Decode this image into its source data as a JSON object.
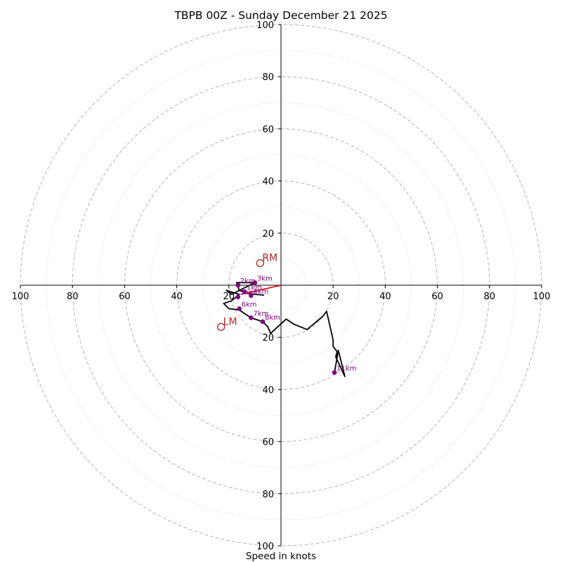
{
  "chart_data": {
    "type": "hodograph",
    "title": "TBPB 00Z - Sunday December 21 2025",
    "xlabel": "Speed in knots",
    "xlim": [
      -100,
      100
    ],
    "ylim": [
      -100,
      100
    ],
    "rings_major": [
      20,
      40,
      60,
      80,
      100
    ],
    "rings_minor": [
      10,
      30,
      50,
      70,
      90
    ],
    "x_ticks": [
      {
        "value": -100,
        "label": "100"
      },
      {
        "value": -80,
        "label": "80"
      },
      {
        "value": -60,
        "label": "60"
      },
      {
        "value": -40,
        "label": "40"
      },
      {
        "value": -20,
        "label": "20"
      },
      {
        "value": 20,
        "label": "20"
      },
      {
        "value": 40,
        "label": "40"
      },
      {
        "value": 60,
        "label": "60"
      },
      {
        "value": 80,
        "label": "80"
      },
      {
        "value": 100,
        "label": "100"
      }
    ],
    "y_ticks": [
      {
        "value": 100,
        "label": "100"
      },
      {
        "value": 80,
        "label": "80"
      },
      {
        "value": 60,
        "label": "60"
      },
      {
        "value": 40,
        "label": "40"
      },
      {
        "value": 20,
        "label": "20"
      },
      {
        "value": -20,
        "label": "20"
      },
      {
        "value": -40,
        "label": "40"
      },
      {
        "value": -60,
        "label": "60"
      },
      {
        "value": -80,
        "label": "80"
      },
      {
        "value": -100,
        "label": "100"
      }
    ],
    "trace": [
      [
        -6.5,
        -3.8
      ],
      [
        -10.0,
        -3.5
      ],
      [
        -13.0,
        -3.0
      ],
      [
        -16.0,
        -2.0
      ],
      [
        -17.0,
        1.0
      ],
      [
        -10.0,
        1.0
      ],
      [
        -15.0,
        -1.5
      ],
      [
        -19.0,
        -3.5
      ],
      [
        -21.0,
        -2.0
      ],
      [
        -16.0,
        -3.5
      ],
      [
        -19.0,
        -6.0
      ],
      [
        -22.0,
        -7.0
      ],
      [
        -20.0,
        -9.0
      ],
      [
        -16.0,
        -9.5
      ],
      [
        -11.5,
        -12.5
      ],
      [
        -7.0,
        -14.0
      ],
      [
        -5.0,
        -16.0
      ],
      [
        -4.0,
        -18.5
      ],
      [
        2.0,
        -13.0
      ],
      [
        5.0,
        -15.0
      ],
      [
        10.0,
        -17.0
      ],
      [
        16.0,
        -12.0
      ],
      [
        17.5,
        -10.0
      ],
      [
        20.0,
        -21.0
      ],
      [
        20.0,
        -23.5
      ],
      [
        21.5,
        -25.5
      ],
      [
        21.0,
        -27.5
      ],
      [
        24.5,
        -35.0
      ],
      [
        22.0,
        -25.0
      ],
      [
        20.5,
        -33.5
      ]
    ],
    "height_markers": [
      {
        "label": "1km",
        "u": -14.0,
        "v": -2.5
      },
      {
        "label": "2km",
        "u": -16.5,
        "v": 0.0
      },
      {
        "label": "3km",
        "u": -10.0,
        "v": 1.0
      },
      {
        "label": "4km",
        "u": -11.5,
        "v": -4.0
      },
      {
        "label": "5km",
        "u": -16.5,
        "v": -4.5
      },
      {
        "label": "6km",
        "u": -16.0,
        "v": -9.0
      },
      {
        "label": "7km",
        "u": -11.5,
        "v": -12.5
      },
      {
        "label": "8km",
        "u": -7.0,
        "v": -14.0
      },
      {
        "label": "11km",
        "u": 20.5,
        "v": -33.5
      }
    ],
    "storm_motion": [
      {
        "label": "RM",
        "u": -8.0,
        "v": 8.5
      },
      {
        "label": "LM",
        "u": -23.0,
        "v": -16.0
      }
    ],
    "shear_vector": {
      "from": [
        0,
        0
      ],
      "to": [
        -15.5,
        -3.5
      ]
    },
    "colors": {
      "trace": "#000000",
      "marker": "#800080",
      "storm_motion": "#b22222",
      "shear": "#e00000",
      "ring_major": "#b4b4b4",
      "ring_minor": "#cfcfcf",
      "axis": "#000000"
    }
  }
}
